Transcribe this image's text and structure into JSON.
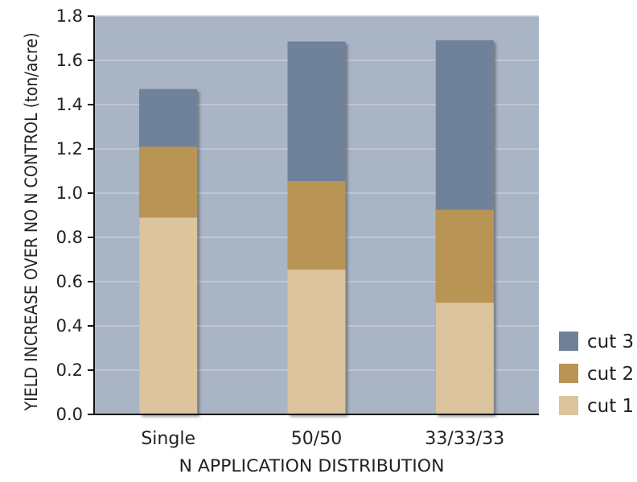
{
  "chart_data": {
    "type": "bar",
    "stacked": true,
    "title": "",
    "xlabel": "N APPLICATION DISTRIBUTION",
    "ylabel": "YIELD INCREASE OVER NO N CONTROL (ton/acre)",
    "ylim": [
      0,
      1.8
    ],
    "yticks": [
      "0.0",
      "0.2",
      "0.4",
      "0.6",
      "0.8",
      "1.0",
      "1.2",
      "1.4",
      "1.6",
      "1.8"
    ],
    "grid": true,
    "legend_position": "bottom-right",
    "categories": [
      "Single",
      "50/50",
      "33/33/33"
    ],
    "series": [
      {
        "name": "cut 1",
        "color": "#dcc49e",
        "values": [
          0.89,
          0.655,
          0.505
        ]
      },
      {
        "name": "cut 2",
        "color": "#b89455",
        "values": [
          0.32,
          0.4,
          0.42
        ]
      },
      {
        "name": "cut 3",
        "color": "#70829a",
        "values": [
          0.26,
          0.63,
          0.765
        ]
      }
    ],
    "colors": {
      "plot_background": "#a9b5c5",
      "gridline": "#c6ced9"
    }
  }
}
